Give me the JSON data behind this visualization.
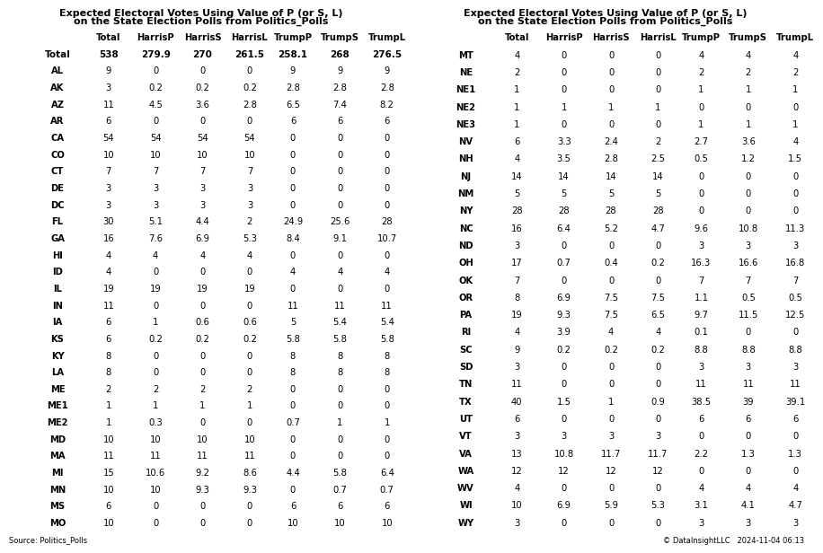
{
  "title_line1": "Expected Electoral Votes Using Value of P (or S, L)",
  "title_line2": "on the State Election Polls from Politics_Polls",
  "source": "Source: Politics_Polls",
  "copyright": "© DataInsightLLC   2024-11-04 06:13",
  "left_rows": [
    [
      "Total",
      "538",
      "279.9",
      "270",
      "261.5",
      "258.1",
      "268",
      "276.5"
    ],
    [
      "AL",
      "9",
      "0",
      "0",
      "0",
      "9",
      "9",
      "9"
    ],
    [
      "AK",
      "3",
      "0.2",
      "0.2",
      "0.2",
      "2.8",
      "2.8",
      "2.8"
    ],
    [
      "AZ",
      "11",
      "4.5",
      "3.6",
      "2.8",
      "6.5",
      "7.4",
      "8.2"
    ],
    [
      "AR",
      "6",
      "0",
      "0",
      "0",
      "6",
      "6",
      "6"
    ],
    [
      "CA",
      "54",
      "54",
      "54",
      "54",
      "0",
      "0",
      "0"
    ],
    [
      "CO",
      "10",
      "10",
      "10",
      "10",
      "0",
      "0",
      "0"
    ],
    [
      "CT",
      "7",
      "7",
      "7",
      "7",
      "0",
      "0",
      "0"
    ],
    [
      "DE",
      "3",
      "3",
      "3",
      "3",
      "0",
      "0",
      "0"
    ],
    [
      "DC",
      "3",
      "3",
      "3",
      "3",
      "0",
      "0",
      "0"
    ],
    [
      "FL",
      "30",
      "5.1",
      "4.4",
      "2",
      "24.9",
      "25.6",
      "28"
    ],
    [
      "GA",
      "16",
      "7.6",
      "6.9",
      "5.3",
      "8.4",
      "9.1",
      "10.7"
    ],
    [
      "HI",
      "4",
      "4",
      "4",
      "4",
      "0",
      "0",
      "0"
    ],
    [
      "ID",
      "4",
      "0",
      "0",
      "0",
      "4",
      "4",
      "4"
    ],
    [
      "IL",
      "19",
      "19",
      "19",
      "19",
      "0",
      "0",
      "0"
    ],
    [
      "IN",
      "11",
      "0",
      "0",
      "0",
      "11",
      "11",
      "11"
    ],
    [
      "IA",
      "6",
      "1",
      "0.6",
      "0.6",
      "5",
      "5.4",
      "5.4"
    ],
    [
      "KS",
      "6",
      "0.2",
      "0.2",
      "0.2",
      "5.8",
      "5.8",
      "5.8"
    ],
    [
      "KY",
      "8",
      "0",
      "0",
      "0",
      "8",
      "8",
      "8"
    ],
    [
      "LA",
      "8",
      "0",
      "0",
      "0",
      "8",
      "8",
      "8"
    ],
    [
      "ME",
      "2",
      "2",
      "2",
      "2",
      "0",
      "0",
      "0"
    ],
    [
      "ME1",
      "1",
      "1",
      "1",
      "1",
      "0",
      "0",
      "0"
    ],
    [
      "ME2",
      "1",
      "0.3",
      "0",
      "0",
      "0.7",
      "1",
      "1"
    ],
    [
      "MD",
      "10",
      "10",
      "10",
      "10",
      "0",
      "0",
      "0"
    ],
    [
      "MA",
      "11",
      "11",
      "11",
      "11",
      "0",
      "0",
      "0"
    ],
    [
      "MI",
      "15",
      "10.6",
      "9.2",
      "8.6",
      "4.4",
      "5.8",
      "6.4"
    ],
    [
      "MN",
      "10",
      "10",
      "9.3",
      "9.3",
      "0",
      "0.7",
      "0.7"
    ],
    [
      "MS",
      "6",
      "0",
      "0",
      "0",
      "6",
      "6",
      "6"
    ],
    [
      "MO",
      "10",
      "0",
      "0",
      "0",
      "10",
      "10",
      "10"
    ]
  ],
  "right_rows": [
    [
      "MT",
      "4",
      "0",
      "0",
      "0",
      "4",
      "4",
      "4"
    ],
    [
      "NE",
      "2",
      "0",
      "0",
      "0",
      "2",
      "2",
      "2"
    ],
    [
      "NE1",
      "1",
      "0",
      "0",
      "0",
      "1",
      "1",
      "1"
    ],
    [
      "NE2",
      "1",
      "1",
      "1",
      "1",
      "0",
      "0",
      "0"
    ],
    [
      "NE3",
      "1",
      "0",
      "0",
      "0",
      "1",
      "1",
      "1"
    ],
    [
      "NV",
      "6",
      "3.3",
      "2.4",
      "2",
      "2.7",
      "3.6",
      "4"
    ],
    [
      "NH",
      "4",
      "3.5",
      "2.8",
      "2.5",
      "0.5",
      "1.2",
      "1.5"
    ],
    [
      "NJ",
      "14",
      "14",
      "14",
      "14",
      "0",
      "0",
      "0"
    ],
    [
      "NM",
      "5",
      "5",
      "5",
      "5",
      "0",
      "0",
      "0"
    ],
    [
      "NY",
      "28",
      "28",
      "28",
      "28",
      "0",
      "0",
      "0"
    ],
    [
      "NC",
      "16",
      "6.4",
      "5.2",
      "4.7",
      "9.6",
      "10.8",
      "11.3"
    ],
    [
      "ND",
      "3",
      "0",
      "0",
      "0",
      "3",
      "3",
      "3"
    ],
    [
      "OH",
      "17",
      "0.7",
      "0.4",
      "0.2",
      "16.3",
      "16.6",
      "16.8"
    ],
    [
      "OK",
      "7",
      "0",
      "0",
      "0",
      "7",
      "7",
      "7"
    ],
    [
      "OR",
      "8",
      "6.9",
      "7.5",
      "7.5",
      "1.1",
      "0.5",
      "0.5"
    ],
    [
      "PA",
      "19",
      "9.3",
      "7.5",
      "6.5",
      "9.7",
      "11.5",
      "12.5"
    ],
    [
      "RI",
      "4",
      "3.9",
      "4",
      "4",
      "0.1",
      "0",
      "0"
    ],
    [
      "SC",
      "9",
      "0.2",
      "0.2",
      "0.2",
      "8.8",
      "8.8",
      "8.8"
    ],
    [
      "SD",
      "3",
      "0",
      "0",
      "0",
      "3",
      "3",
      "3"
    ],
    [
      "TN",
      "11",
      "0",
      "0",
      "0",
      "11",
      "11",
      "11"
    ],
    [
      "TX",
      "40",
      "1.5",
      "1",
      "0.9",
      "38.5",
      "39",
      "39.1"
    ],
    [
      "UT",
      "6",
      "0",
      "0",
      "0",
      "6",
      "6",
      "6"
    ],
    [
      "VT",
      "3",
      "3",
      "3",
      "3",
      "0",
      "0",
      "0"
    ],
    [
      "VA",
      "13",
      "10.8",
      "11.7",
      "11.7",
      "2.2",
      "1.3",
      "1.3"
    ],
    [
      "WA",
      "12",
      "12",
      "12",
      "12",
      "0",
      "0",
      "0"
    ],
    [
      "WV",
      "4",
      "0",
      "0",
      "0",
      "4",
      "4",
      "4"
    ],
    [
      "WI",
      "10",
      "6.9",
      "5.9",
      "5.3",
      "3.1",
      "4.1",
      "4.7"
    ],
    [
      "WY",
      "3",
      "0",
      "0",
      "0",
      "3",
      "3",
      "3"
    ]
  ],
  "col_headers": [
    "Total",
    "HarrisP",
    "HarrisS",
    "HarrisL",
    "TrumpP",
    "TrumpS",
    "TrumpL"
  ],
  "title_fontsize": 8.0,
  "header_fontsize": 7.2,
  "data_fontsize": 7.2,
  "total_fontsize": 7.5
}
